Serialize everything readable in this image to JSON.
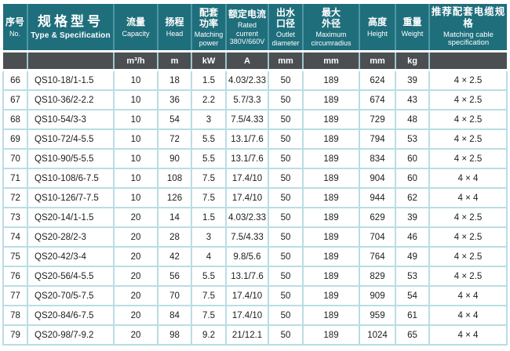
{
  "colors": {
    "header_bg": "#1f6e7c",
    "header_sep": "#4f96a3",
    "header_text": "#ffffff",
    "unit_bg": "#4b4f52",
    "unit_sep": "#9fc6cd",
    "body_border": "#b9dde3",
    "body_text": "#1c1c1c"
  },
  "table": {
    "columns": [
      {
        "key": "no",
        "zh": "序号",
        "en": "No.",
        "unit": ""
      },
      {
        "key": "type",
        "zh": "规格型号",
        "en": "Type & Specification",
        "unit": ""
      },
      {
        "key": "capacity",
        "zh": "流量",
        "en": "Capacity",
        "unit": "m³/h"
      },
      {
        "key": "head",
        "zh": "扬程",
        "en": "Head",
        "unit": "m"
      },
      {
        "key": "power",
        "zh": "配套\n功率",
        "en": "Matching power",
        "unit": "kW"
      },
      {
        "key": "current",
        "zh": "额定电流",
        "en": "Rated current 380V/660V",
        "unit": "A"
      },
      {
        "key": "outlet",
        "zh": "出水\n口径",
        "en": "Outlet diameter",
        "unit": "mm"
      },
      {
        "key": "maxdia",
        "zh": "最大\n外径",
        "en": "Maximum circumradius",
        "unit": "mm"
      },
      {
        "key": "height",
        "zh": "高度",
        "en": "Height",
        "unit": "mm"
      },
      {
        "key": "weight",
        "zh": "重量",
        "en": "Weight",
        "unit": "kg"
      },
      {
        "key": "cable",
        "zh": "推荐配套电缆规格",
        "en": "Matching cable specification",
        "unit": ""
      }
    ],
    "rows": [
      [
        "66",
        "QS10-18/1-1.5",
        "10",
        "18",
        "1.5",
        "4.03/2.33",
        "50",
        "189",
        "624",
        "39",
        "4 × 2.5"
      ],
      [
        "67",
        "QS10-36/2-2.2",
        "10",
        "36",
        "2.2",
        "5.7/3.3",
        "50",
        "189",
        "674",
        "43",
        "4 × 2.5"
      ],
      [
        "68",
        "QS10-54/3-3",
        "10",
        "54",
        "3",
        "7.5/4.33",
        "50",
        "189",
        "729",
        "48",
        "4 × 2.5"
      ],
      [
        "69",
        "QS10-72/4-5.5",
        "10",
        "72",
        "5.5",
        "13.1/7.6",
        "50",
        "189",
        "794",
        "53",
        "4 × 2.5"
      ],
      [
        "70",
        "QS10-90/5-5.5",
        "10",
        "90",
        "5.5",
        "13.1/7.6",
        "50",
        "189",
        "834",
        "60",
        "4 × 2.5"
      ],
      [
        "71",
        "QS10-108/6-7.5",
        "10",
        "108",
        "7.5",
        "17.4/10",
        "50",
        "189",
        "904",
        "60",
        "4 × 4"
      ],
      [
        "72",
        "QS10-126/7-7.5",
        "10",
        "126",
        "7.5",
        "17.4/10",
        "50",
        "189",
        "944",
        "62",
        "4 × 4"
      ],
      [
        "73",
        "QS20-14/1-1.5",
        "20",
        "14",
        "1.5",
        "4.03/2.33",
        "50",
        "189",
        "629",
        "39",
        "4 × 2.5"
      ],
      [
        "74",
        "QS20-28/2-3",
        "20",
        "28",
        "3",
        "7.5/4.33",
        "50",
        "189",
        "704",
        "46",
        "4 × 2.5"
      ],
      [
        "75",
        "QS20-42/3-4",
        "20",
        "42",
        "4",
        "9.8/5.6",
        "50",
        "189",
        "764",
        "49",
        "4 × 2.5"
      ],
      [
        "76",
        "QS20-56/4-5.5",
        "20",
        "56",
        "5.5",
        "13.1/7.6",
        "50",
        "189",
        "829",
        "53",
        "4 × 2.5"
      ],
      [
        "77",
        "QS20-70/5-7.5",
        "20",
        "70",
        "7.5",
        "17.4/10",
        "50",
        "189",
        "909",
        "54",
        "4 × 4"
      ],
      [
        "78",
        "QS20-84/6-7.5",
        "20",
        "84",
        "7.5",
        "17.4/10",
        "50",
        "189",
        "959",
        "61",
        "4 × 4"
      ],
      [
        "79",
        "QS20-98/7-9.2",
        "20",
        "98",
        "9.2",
        "21/12.1",
        "50",
        "189",
        "1024",
        "65",
        "4 × 4"
      ]
    ]
  }
}
